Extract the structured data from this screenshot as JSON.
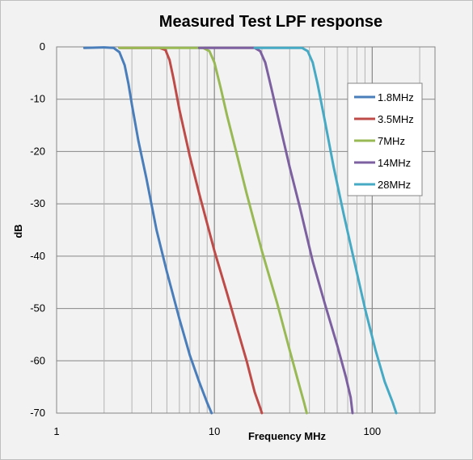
{
  "chart_data": {
    "type": "line",
    "title": "Measured Test LPF response",
    "xlabel": "Frequency MHz",
    "ylabel": "dB",
    "xscale": "log",
    "xlim": [
      1,
      250
    ],
    "ylim": [
      -70,
      0
    ],
    "x_ticks": [
      1,
      10,
      100
    ],
    "x_tick_labels": [
      "1",
      "10",
      "100"
    ],
    "y_ticks": [
      0,
      -10,
      -20,
      -30,
      -40,
      -50,
      -60,
      -70
    ],
    "y_tick_labels": [
      "0",
      "-10",
      "-20",
      "-30",
      "-40",
      "-50",
      "-60",
      "-70"
    ],
    "grid": true,
    "legend_position": "top-right",
    "series": [
      {
        "name": "1.8MHz",
        "color": "#4a7ebb",
        "points": [
          [
            1.5,
            -0.2
          ],
          [
            2.0,
            -0.1
          ],
          [
            2.3,
            -0.2
          ],
          [
            2.5,
            -1.0
          ],
          [
            2.7,
            -3.5
          ],
          [
            2.85,
            -7
          ],
          [
            3.0,
            -11
          ],
          [
            3.3,
            -18
          ],
          [
            3.7,
            -25
          ],
          [
            4.3,
            -35
          ],
          [
            5.0,
            -43
          ],
          [
            6.0,
            -52
          ],
          [
            7.0,
            -59
          ],
          [
            8.0,
            -64
          ],
          [
            9.0,
            -68
          ],
          [
            9.6,
            -70
          ]
        ]
      },
      {
        "name": "3.5MHz",
        "color": "#be4b48",
        "points": [
          [
            2.5,
            -0.2
          ],
          [
            4.5,
            -0.2
          ],
          [
            4.9,
            -0.6
          ],
          [
            5.2,
            -2.5
          ],
          [
            5.5,
            -6
          ],
          [
            6.0,
            -12
          ],
          [
            7.0,
            -21
          ],
          [
            8.0,
            -28
          ],
          [
            10.0,
            -39
          ],
          [
            12.0,
            -47
          ],
          [
            14.0,
            -54
          ],
          [
            16.0,
            -60
          ],
          [
            18.0,
            -66
          ],
          [
            19.5,
            -69
          ],
          [
            20.0,
            -70
          ]
        ]
      },
      {
        "name": "7MHz",
        "color": "#98b954",
        "points": [
          [
            2.5,
            -0.2
          ],
          [
            8.5,
            -0.2
          ],
          [
            9.3,
            -0.8
          ],
          [
            10.0,
            -3
          ],
          [
            11.0,
            -8
          ],
          [
            12.0,
            -13
          ],
          [
            14.0,
            -21
          ],
          [
            16.0,
            -28
          ],
          [
            20.0,
            -39
          ],
          [
            25.0,
            -49
          ],
          [
            30.0,
            -58
          ],
          [
            34.0,
            -64
          ],
          [
            37.0,
            -68
          ],
          [
            38.5,
            -70
          ]
        ]
      },
      {
        "name": "14MHz",
        "color": "#7d60a0",
        "points": [
          [
            8.0,
            -0.2
          ],
          [
            18.0,
            -0.2
          ],
          [
            19.5,
            -0.8
          ],
          [
            21.0,
            -3
          ],
          [
            23.0,
            -8
          ],
          [
            26.0,
            -15
          ],
          [
            30.0,
            -23
          ],
          [
            35.0,
            -31
          ],
          [
            42.0,
            -41
          ],
          [
            50.0,
            -49
          ],
          [
            60.0,
            -57
          ],
          [
            68.0,
            -63
          ],
          [
            73.0,
            -67
          ],
          [
            75.0,
            -70
          ]
        ]
      },
      {
        "name": "28MHz",
        "color": "#46aac5",
        "points": [
          [
            18.0,
            -0.2
          ],
          [
            36.0,
            -0.2
          ],
          [
            39.0,
            -0.8
          ],
          [
            42.0,
            -3
          ],
          [
            45.0,
            -7
          ],
          [
            50.0,
            -14
          ],
          [
            57.0,
            -23
          ],
          [
            66.0,
            -32
          ],
          [
            77.0,
            -41
          ],
          [
            90.0,
            -50
          ],
          [
            105.0,
            -58
          ],
          [
            120.0,
            -64
          ],
          [
            135.0,
            -68
          ],
          [
            142.0,
            -70
          ]
        ]
      }
    ]
  }
}
